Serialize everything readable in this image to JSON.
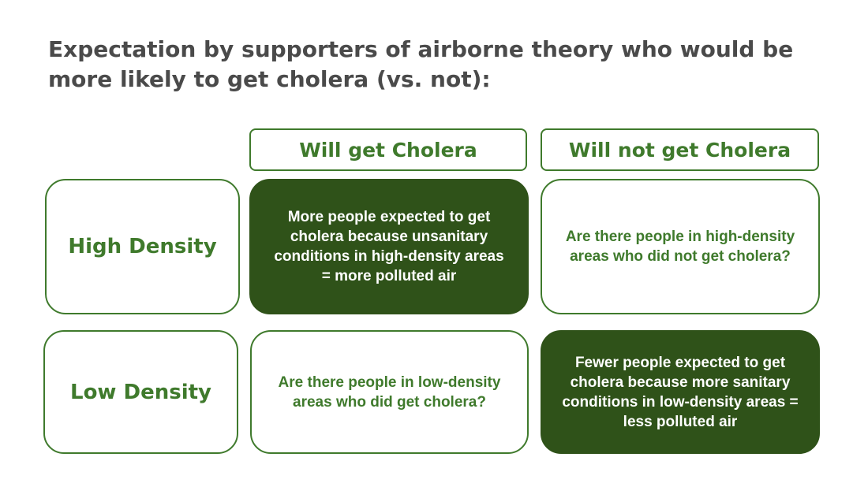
{
  "title": "Expectation by supporters of airborne theory who would be more likely to get cholera (vs. not):",
  "columns": [
    {
      "label": "Will get Cholera"
    },
    {
      "label": "Will not get Cholera"
    }
  ],
  "rows": [
    {
      "label": "High Density",
      "cells": [
        {
          "text": "More people expected to get cholera because unsanitary conditions in high-density areas = more polluted air",
          "highlighted": true
        },
        {
          "text": "Are there people in high-density areas who did not get cholera?",
          "highlighted": false
        }
      ]
    },
    {
      "label": "Low Density",
      "cells": [
        {
          "text": "Are there people in low-density areas who did get cholera?",
          "highlighted": false
        },
        {
          "text": "Fewer people expected to get cholera because more sanitary conditions in low-density areas = less polluted air",
          "highlighted": true
        }
      ]
    }
  ],
  "colors": {
    "accent": "#3f7a2c",
    "fill": "#2f5219",
    "title": "#4a4a4a"
  }
}
